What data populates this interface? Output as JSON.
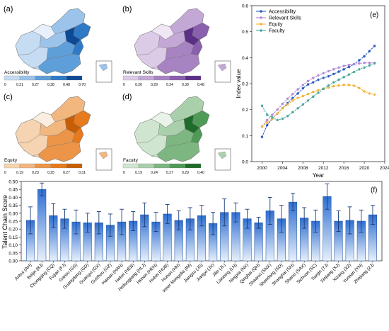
{
  "maps": [
    {
      "letter": "(a)",
      "legend_title": "Accessibility",
      "ticks": [
        "0",
        "0.21",
        "0.27",
        "0.38",
        "0.48",
        "0.70"
      ],
      "colors": [
        "#e8f1fb",
        "#c6dcf3",
        "#9cc3ea",
        "#5e9fd9",
        "#2f7ac6",
        "#0d4a96"
      ]
    },
    {
      "letter": "(b)",
      "legend_title": "Relevant Skills",
      "ticks": [
        "0",
        "0.26",
        "0.29",
        "0.34",
        "0.39",
        "0.48"
      ],
      "colors": [
        "#efe8f4",
        "#dccbe7",
        "#c3a8d6",
        "#a783c2",
        "#8a5fae",
        "#5c2f86"
      ]
    },
    {
      "letter": "(c)",
      "legend_title": "Equity",
      "ticks": [
        "0",
        "0.19",
        "0.23",
        "0.25",
        "0.27",
        "0.31"
      ],
      "colors": [
        "#fbeee0",
        "#f6d4b1",
        "#f2b67f",
        "#ec9548",
        "#e67a1c",
        "#c75e05"
      ]
    },
    {
      "letter": "(d)",
      "legend_title": "Faculty",
      "ticks": [
        "0",
        "0.19",
        "0.24",
        "0.27",
        "0.29",
        "0.40"
      ],
      "colors": [
        "#eaf3ea",
        "#cfe5cf",
        "#a9d0aa",
        "#7db680",
        "#4f9a57",
        "#1f6b2a"
      ]
    }
  ],
  "chart_data": [
    {
      "panel": "(e)",
      "type": "line",
      "xlabel": "Year",
      "ylabel": "Index value",
      "xlim": [
        1998,
        2024
      ],
      "ylim": [
        0.0,
        0.6
      ],
      "xticks": [
        2000,
        2004,
        2008,
        2012,
        2016,
        2020,
        2024
      ],
      "yticks": [
        0.0,
        0.1,
        0.2,
        0.3,
        0.4,
        0.5,
        0.6
      ],
      "legend_position": "top-left",
      "x": [
        2000,
        2001,
        2002,
        2003,
        2004,
        2005,
        2006,
        2007,
        2008,
        2009,
        2010,
        2011,
        2012,
        2013,
        2014,
        2015,
        2016,
        2017,
        2018,
        2019,
        2020,
        2021,
        2022
      ],
      "series": [
        {
          "name": "Accessibility",
          "color": "#2a5cbf",
          "values": [
            0.095,
            0.14,
            0.165,
            0.185,
            0.205,
            0.225,
            0.245,
            0.262,
            0.282,
            0.297,
            0.305,
            0.315,
            0.322,
            0.328,
            0.337,
            0.346,
            0.355,
            0.364,
            0.375,
            0.39,
            0.405,
            0.425,
            0.445
          ]
        },
        {
          "name": "Relevant Skills",
          "color": "#b487d6",
          "values": [
            0.135,
            0.16,
            0.18,
            0.2,
            0.222,
            0.242,
            0.26,
            0.278,
            0.295,
            0.31,
            0.322,
            0.332,
            0.34,
            0.348,
            0.355,
            0.362,
            0.368,
            0.372,
            0.375,
            0.378,
            0.38,
            0.38,
            0.38
          ]
        },
        {
          "name": "Equity",
          "color": "#f2b53b",
          "values": [
            0.135,
            0.15,
            0.165,
            0.185,
            0.205,
            0.22,
            0.235,
            0.245,
            0.252,
            0.26,
            0.268,
            0.275,
            0.28,
            0.285,
            0.29,
            0.293,
            0.295,
            0.295,
            0.292,
            0.283,
            0.27,
            0.262,
            0.258
          ]
        },
        {
          "name": "Faculty",
          "color": "#4aa89e",
          "values": [
            0.215,
            0.18,
            0.17,
            0.16,
            0.165,
            0.175,
            0.19,
            0.205,
            0.22,
            0.235,
            0.25,
            0.265,
            0.28,
            0.293,
            0.305,
            0.315,
            0.325,
            0.335,
            0.345,
            0.355,
            0.362,
            0.37,
            0.378
          ]
        }
      ]
    },
    {
      "panel": "(f)",
      "type": "bar",
      "ylabel": "Talent Chain Score",
      "ylim": [
        0.0,
        0.5
      ],
      "yticks": [
        0.0,
        0.05,
        0.1,
        0.15,
        0.2,
        0.25,
        0.3,
        0.35,
        0.4,
        0.45,
        0.5
      ],
      "categories": [
        "Anhui (AH)",
        "Beijin (BJ)",
        "Chongqing (CQ)",
        "Fujian (FJ)",
        "Gansu (GS)",
        "Guangdong (GD)",
        "Guangxi (GX)",
        "Guizhou (GZ)",
        "Hainan (HAN)",
        "Hebei (HEB)",
        "Heilongjiang (HLJ)",
        "Henan (HEN)",
        "Hubei (HUB)",
        "Hunan (HN)",
        "Inner Mongolia (IM)",
        "Jiangsu (JS)",
        "Jiangxi (JX)",
        "Jilin (JL)",
        "Liaoning (LN)",
        "Ningxia (NX)",
        "Qinghai (QH)",
        "Shaanxi (SNX)",
        "Shandong (SD)",
        "Shanghai (SH)",
        "Shanxi (SAX)",
        "Sichuan (SC)",
        "Tianjin (TJ)",
        "Xinjiang (XJ)",
        "Xizang (XZ)",
        "Yunnan (YN)",
        "Zhejiang (ZJ)"
      ],
      "values": [
        0.255,
        0.45,
        0.285,
        0.265,
        0.245,
        0.24,
        0.24,
        0.225,
        0.245,
        0.25,
        0.29,
        0.245,
        0.295,
        0.255,
        0.265,
        0.285,
        0.235,
        0.305,
        0.305,
        0.265,
        0.24,
        0.315,
        0.265,
        0.37,
        0.27,
        0.25,
        0.405,
        0.25,
        0.255,
        0.25,
        0.29
      ],
      "errors": [
        0.085,
        0.04,
        0.075,
        0.06,
        0.075,
        0.06,
        0.07,
        0.07,
        0.08,
        0.06,
        0.075,
        0.06,
        0.06,
        0.06,
        0.07,
        0.065,
        0.07,
        0.085,
        0.06,
        0.06,
        0.035,
        0.085,
        0.085,
        0.055,
        0.065,
        0.07,
        0.08,
        0.065,
        0.085,
        0.07,
        0.06
      ]
    }
  ]
}
